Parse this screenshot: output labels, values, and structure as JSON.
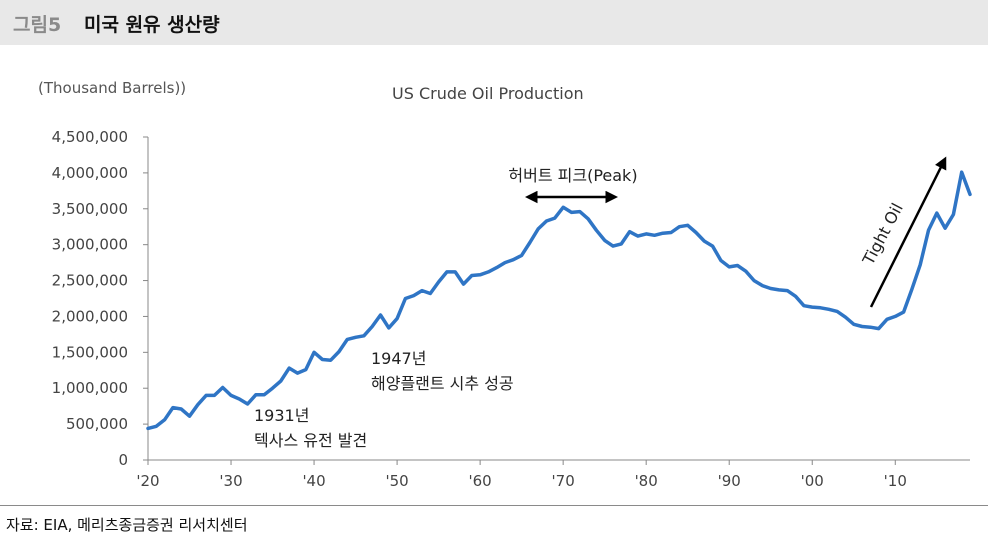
{
  "header": {
    "figure_label": "그림5",
    "title": "미국 원유 생산량"
  },
  "source": "자료: EIA, 메리츠종금증권 리서치센터",
  "colors": {
    "line": "#2f75c5",
    "header_bg": "#e8e8e8",
    "arrow": "#000000"
  },
  "chart_data": {
    "type": "line",
    "title": "US Crude Oil Production",
    "ylabel": "(Thousand Barrels))",
    "xlabel": "",
    "ylim": [
      0,
      4500000
    ],
    "xlim": [
      1920,
      2019
    ],
    "yticks": [
      {
        "v": 0,
        "label": "0"
      },
      {
        "v": 500000,
        "label": "500,000"
      },
      {
        "v": 1000000,
        "label": "1,000,000"
      },
      {
        "v": 1500000,
        "label": "1,500,000"
      },
      {
        "v": 2000000,
        "label": "2,000,000"
      },
      {
        "v": 2500000,
        "label": "2,500,000"
      },
      {
        "v": 3000000,
        "label": "3,000,000"
      },
      {
        "v": 3500000,
        "label": "3,500,000"
      },
      {
        "v": 4000000,
        "label": "4,000,000"
      },
      {
        "v": 4500000,
        "label": "4,500,000"
      }
    ],
    "xticks": [
      {
        "v": 1920,
        "label": "'20"
      },
      {
        "v": 1930,
        "label": "'30"
      },
      {
        "v": 1940,
        "label": "'40"
      },
      {
        "v": 1950,
        "label": "'50"
      },
      {
        "v": 1960,
        "label": "'60"
      },
      {
        "v": 1970,
        "label": "'70"
      },
      {
        "v": 1980,
        "label": "'80"
      },
      {
        "v": 1990,
        "label": "'90"
      },
      {
        "v": 2000,
        "label": "'00"
      },
      {
        "v": 2010,
        "label": "'10"
      }
    ],
    "series": [
      {
        "name": "US Crude Oil Production",
        "x": [
          1920,
          1921,
          1922,
          1923,
          1924,
          1925,
          1926,
          1927,
          1928,
          1929,
          1930,
          1931,
          1932,
          1933,
          1934,
          1935,
          1936,
          1937,
          1938,
          1939,
          1940,
          1941,
          1942,
          1943,
          1944,
          1945,
          1946,
          1947,
          1948,
          1949,
          1950,
          1951,
          1952,
          1953,
          1954,
          1955,
          1956,
          1957,
          1958,
          1959,
          1960,
          1961,
          1962,
          1963,
          1964,
          1965,
          1966,
          1967,
          1968,
          1969,
          1970,
          1971,
          1972,
          1973,
          1974,
          1975,
          1976,
          1977,
          1978,
          1979,
          1980,
          1981,
          1982,
          1983,
          1984,
          1985,
          1986,
          1987,
          1988,
          1989,
          1990,
          1991,
          1992,
          1993,
          1994,
          1995,
          1996,
          1997,
          1998,
          1999,
          2000,
          2001,
          2002,
          2003,
          2004,
          2005,
          2006,
          2007,
          2008,
          2009,
          2010,
          2011,
          2012,
          2013,
          2014,
          2015,
          2016,
          2017,
          2018,
          2019
        ],
        "values": [
          440000,
          470000,
          560000,
          730000,
          710000,
          610000,
          770000,
          900000,
          900000,
          1010000,
          900000,
          850000,
          780000,
          910000,
          910000,
          1000000,
          1100000,
          1280000,
          1210000,
          1260000,
          1500000,
          1400000,
          1390000,
          1510000,
          1680000,
          1710000,
          1730000,
          1860000,
          2020000,
          1840000,
          1970000,
          2250000,
          2290000,
          2360000,
          2320000,
          2480000,
          2620000,
          2620000,
          2450000,
          2570000,
          2580000,
          2620000,
          2680000,
          2750000,
          2790000,
          2850000,
          3030000,
          3220000,
          3330000,
          3370000,
          3520000,
          3450000,
          3460000,
          3360000,
          3200000,
          3060000,
          2980000,
          3010000,
          3180000,
          3120000,
          3150000,
          3130000,
          3160000,
          3170000,
          3250000,
          3270000,
          3170000,
          3050000,
          2980000,
          2780000,
          2690000,
          2710000,
          2630000,
          2500000,
          2430000,
          2390000,
          2370000,
          2360000,
          2280000,
          2150000,
          2130000,
          2120000,
          2100000,
          2070000,
          1990000,
          1890000,
          1860000,
          1850000,
          1830000,
          1960000,
          2000000,
          2060000,
          2380000,
          2720000,
          3200000,
          3440000,
          3230000,
          3420000,
          4010000,
          3700000
        ]
      }
    ],
    "annotations": {
      "peak_label": "허버트 피크(Peak)",
      "tight_oil_label": "Tight Oil",
      "note_1947_year": "1947년",
      "note_1947_text": "해양플랜트 시추 성공",
      "note_1931_year": "1931년",
      "note_1931_text": "텍사스 유전 발견"
    }
  }
}
